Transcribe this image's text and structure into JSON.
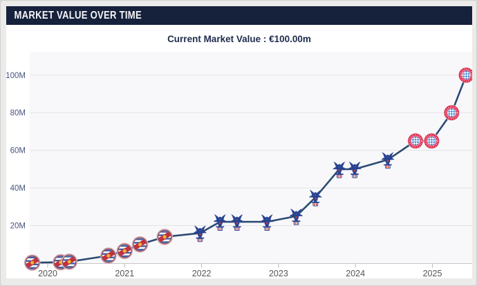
{
  "panel": {
    "title": "MARKET VALUE OVER TIME"
  },
  "subtitle": {
    "text": "Current Market Value : €100.00m"
  },
  "chart_data": {
    "type": "line",
    "title": "Market value over time",
    "currency_unit": "EUR (millions)",
    "current_value": "€100.00m",
    "grid": true,
    "legend": "none",
    "line_color": "#2b4b72",
    "x_axis": {
      "tick_labels": [
        "2020",
        "2021",
        "2022",
        "2023",
        "2024",
        "2025"
      ],
      "tick_values": [
        2020,
        2021,
        2022,
        2023,
        2024,
        2025
      ],
      "range": [
        2019.55,
        2025.6
      ]
    },
    "y_axis": {
      "tick_labels": [
        "20M",
        "40M",
        "60M",
        "80M",
        "100M"
      ],
      "tick_values": [
        20,
        40,
        60,
        80,
        100
      ],
      "range": [
        0,
        112
      ]
    },
    "clubs": [
      {
        "key": "reading",
        "name": "Reading FC"
      },
      {
        "key": "palace",
        "name": "Crystal Palace"
      },
      {
        "key": "bayern",
        "name": "Bayern Munich"
      }
    ],
    "series": [
      {
        "name": "Market value (EUR m)",
        "points": [
          {
            "x": 2019.8,
            "date": "Oct 2019",
            "value_m": 0.3,
            "club": "Reading FC",
            "club_key": "reading"
          },
          {
            "x": 2020.17,
            "date": "Mar 2020",
            "value_m": 0.5,
            "club": "Reading FC",
            "club_key": "reading"
          },
          {
            "x": 2020.28,
            "date": "Apr 2020",
            "value_m": 0.8,
            "club": "Reading FC",
            "club_key": "reading"
          },
          {
            "x": 2020.79,
            "date": "Oct 2020",
            "value_m": 4,
            "club": "Reading FC",
            "club_key": "reading"
          },
          {
            "x": 2021.0,
            "date": "Jan 2021",
            "value_m": 6.5,
            "club": "Reading FC",
            "club_key": "reading"
          },
          {
            "x": 2021.2,
            "date": "Mar 2021",
            "value_m": 10,
            "club": "Reading FC",
            "club_key": "reading"
          },
          {
            "x": 2021.52,
            "date": "Jul 2021",
            "value_m": 14,
            "club": "Reading FC",
            "club_key": "reading"
          },
          {
            "x": 2021.98,
            "date": "Dec 2021",
            "value_m": 16,
            "club": "Crystal Palace",
            "club_key": "palace"
          },
          {
            "x": 2022.24,
            "date": "Mar 2022",
            "value_m": 22,
            "club": "Crystal Palace",
            "club_key": "palace"
          },
          {
            "x": 2022.46,
            "date": "Jun 2022",
            "value_m": 22,
            "club": "Crystal Palace",
            "club_key": "palace"
          },
          {
            "x": 2022.85,
            "date": "Nov 2022",
            "value_m": 22,
            "club": "Crystal Palace",
            "club_key": "palace"
          },
          {
            "x": 2023.23,
            "date": "Mar 2023",
            "value_m": 25,
            "club": "Crystal Palace",
            "club_key": "palace"
          },
          {
            "x": 2023.48,
            "date": "Jun 2023",
            "value_m": 35,
            "club": "Crystal Palace",
            "club_key": "palace"
          },
          {
            "x": 2023.79,
            "date": "Oct 2023",
            "value_m": 50,
            "club": "Crystal Palace",
            "club_key": "palace"
          },
          {
            "x": 2023.99,
            "date": "Dec 2023",
            "value_m": 50,
            "club": "Crystal Palace",
            "club_key": "palace"
          },
          {
            "x": 2024.42,
            "date": "Jun 2024",
            "value_m": 55,
            "club": "Crystal Palace",
            "club_key": "palace"
          },
          {
            "x": 2024.78,
            "date": "Oct 2024",
            "value_m": 65,
            "club": "Bayern Munich",
            "club_key": "bayern"
          },
          {
            "x": 2024.99,
            "date": "Dec 2024",
            "value_m": 65,
            "club": "Bayern Munich",
            "club_key": "bayern"
          },
          {
            "x": 2025.25,
            "date": "Mar 2025",
            "value_m": 80,
            "club": "Bayern Munich",
            "club_key": "bayern"
          },
          {
            "x": 2025.44,
            "date": "Jun 2025",
            "value_m": 100,
            "club": "Bayern Munich",
            "club_key": "bayern"
          }
        ]
      }
    ]
  }
}
